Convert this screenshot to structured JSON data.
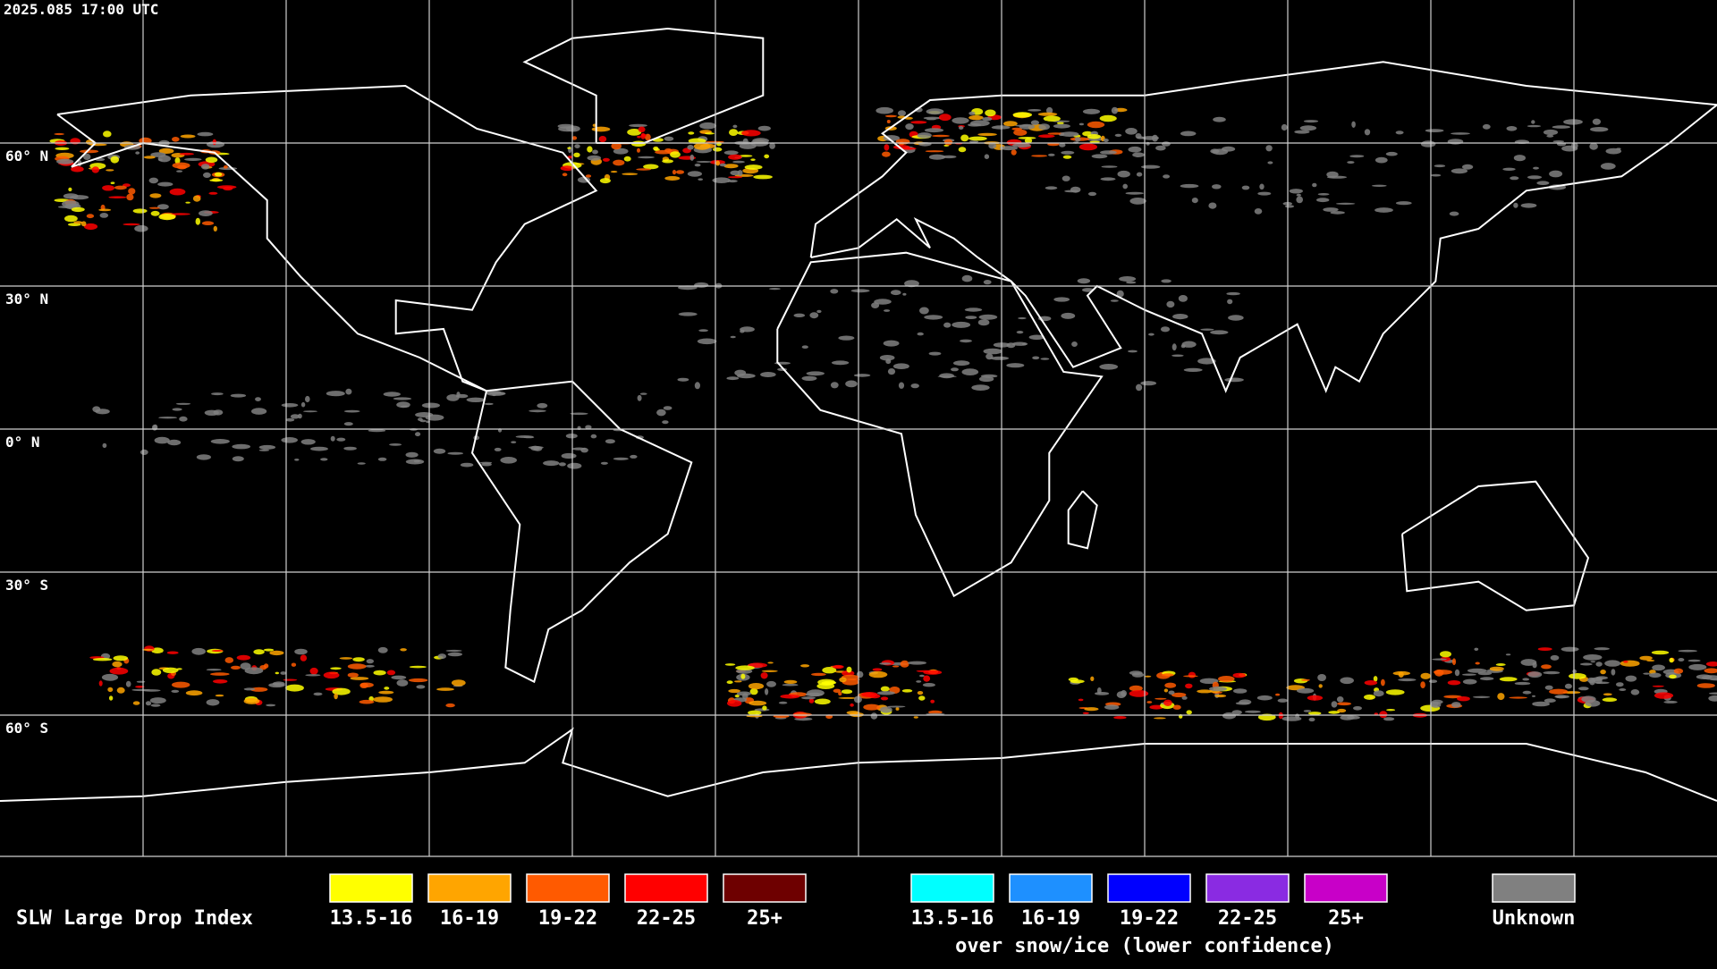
{
  "header": {
    "timestamp": "2025.085 17:00 UTC"
  },
  "latitude_labels": [
    "60° N",
    "30° N",
    "0° N",
    "30° S",
    "60° S"
  ],
  "legend": {
    "title": "SLW Large Drop Index",
    "liquid": [
      {
        "label": "13.5-16",
        "color": "#ffff00"
      },
      {
        "label": "16-19",
        "color": "#ffa500"
      },
      {
        "label": "19-22",
        "color": "#ff5a00"
      },
      {
        "label": "22-25",
        "color": "#ff0000"
      },
      {
        "label": "25+",
        "color": "#6e0000"
      }
    ],
    "snow_ice": [
      {
        "label": "13.5-16",
        "color": "#00ffff"
      },
      {
        "label": "16-19",
        "color": "#1e90ff"
      },
      {
        "label": "19-22",
        "color": "#0000ff"
      },
      {
        "label": "22-25",
        "color": "#8a2be2"
      },
      {
        "label": "25+",
        "color": "#c800c8"
      }
    ],
    "snow_ice_caption": "over snow/ice (lower confidence)",
    "unknown": {
      "label": "Unknown",
      "color": "#808080"
    }
  }
}
